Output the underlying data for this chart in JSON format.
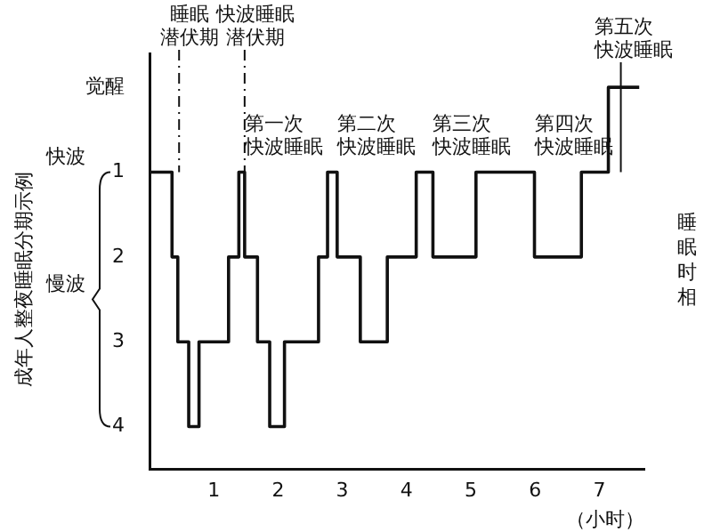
{
  "chart_data": {
    "type": "step",
    "x": [
      0,
      0.35,
      0.44,
      0.61,
      0.77,
      1.23,
      1.39,
      1.48,
      1.68,
      1.87,
      2.1,
      2.63,
      2.77,
      2.92,
      3.28,
      3.7,
      4.15,
      4.41,
      5.08,
      5.99,
      6.72,
      7.14,
      7.42,
      7.62
    ],
    "values": [
      0,
      1,
      2,
      3,
      4,
      3,
      2,
      1,
      2,
      3,
      4,
      3,
      2,
      1,
      2,
      3,
      2,
      1,
      2,
      1,
      2,
      1,
      0,
      0
    ],
    "color": "#111111",
    "xlim": [
      0,
      7.7
    ],
    "xticks": [
      1,
      2,
      3,
      4,
      5,
      6,
      7
    ],
    "ylim": [
      4.5,
      -0.4
    ],
    "yticks": [
      {
        "value": 0,
        "label": "觉醒"
      },
      1,
      2,
      3,
      4
    ],
    "xlabel": "（小时）",
    "ylabel": "成年人整夜睡眠分期示例",
    "ref_lines": [
      {
        "axis": "x",
        "value": 0.46,
        "label": "睡眠潜伏期",
        "line_style": "dashed"
      },
      {
        "axis": "x",
        "value": 1.48,
        "label": "快波睡眠潜伏期",
        "line_style": "dashed"
      }
    ],
    "annotations": [
      "快波",
      "慢波",
      {
        "text": "第一次快波睡眠",
        "x": 1.48,
        "y": 1
      },
      {
        "text": "第二次快波睡眠",
        "x": 2.92,
        "y": 1
      },
      {
        "text": "第三次快波睡眠",
        "x": 4.41,
        "y": 1
      },
      {
        "text": "第四次快波睡眠",
        "x": 5.99,
        "y": 1
      },
      {
        "text": "第五次快波睡眠",
        "x": 7.14,
        "y": 1
      },
      "睡眠时相"
    ],
    "grid": false,
    "legend": false,
    "marker": "none",
    "line_style": "solid"
  }
}
